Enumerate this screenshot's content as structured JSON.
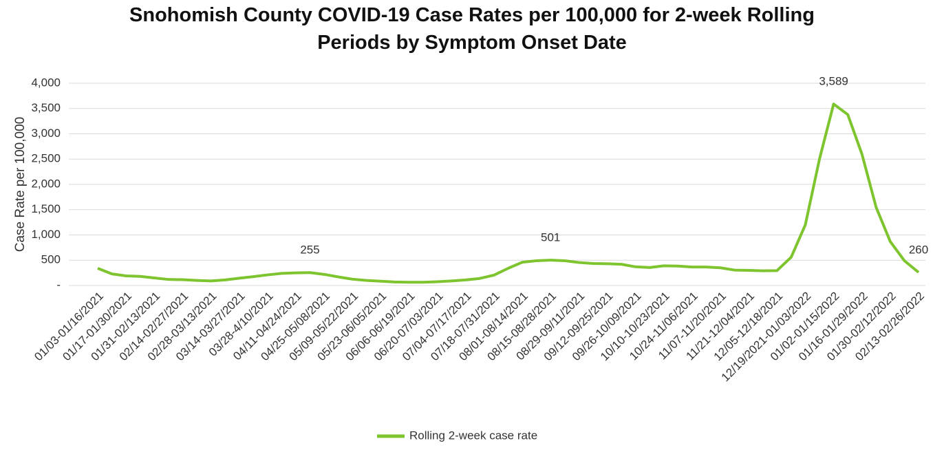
{
  "chart_data": {
    "type": "line",
    "title": "Snohomish County COVID-19 Case Rates per 100,000 for 2-week Rolling Periods by Symptom Onset Date",
    "y_label": "Case Rate per 100,000",
    "categories": [
      "01/03-01/16/2021",
      null,
      "01/17-01/30/2021",
      null,
      "01/31-02/13/2021",
      null,
      "02/14-02/27/2021",
      null,
      "02/28-03/13/2021",
      null,
      "03/14-03/27/2021",
      null,
      "03/28-4/10/2021",
      null,
      "04/11-04/24/2021",
      null,
      "04/25-05/08/2021",
      null,
      "05/09-05/22/2021",
      null,
      "05/23-06/05/2021",
      null,
      "06/06-06/19/2021",
      null,
      "06/20-07/03/2021",
      null,
      "07/04-07/17/2021",
      null,
      "07/18-07/31/2021",
      null,
      "08/01-08/14/2021",
      null,
      "08/15-08/28/2021",
      null,
      "08/29-09/11/2021",
      null,
      "09/12-09/25/2021",
      null,
      "09/26-10/09/2021",
      null,
      "10/10-10/23/2021",
      null,
      "10/24-11/06/2021",
      null,
      "11/07-11/20/2021",
      null,
      "11/21-12/04/2021",
      null,
      "12/05-12/18/2021",
      null,
      "12/19/2021-01/03/2022",
      null,
      "01/02-01/15/2022",
      null,
      "01/16-01/29/2022",
      null,
      "01/30-02/12/2022",
      null,
      "02/13-02/26/2022"
    ],
    "series": [
      {
        "name": "Rolling 2-week case rate",
        "color": "#7dc42f",
        "values": [
          340,
          230,
          190,
          180,
          150,
          120,
          115,
          100,
          90,
          110,
          145,
          175,
          210,
          240,
          250,
          255,
          220,
          170,
          125,
          100,
          85,
          70,
          65,
          65,
          75,
          90,
          110,
          140,
          205,
          340,
          460,
          490,
          501,
          490,
          455,
          435,
          430,
          420,
          370,
          355,
          390,
          385,
          365,
          365,
          350,
          305,
          300,
          290,
          295,
          560,
          1200,
          2500,
          3589,
          3380,
          2600,
          1550,
          870,
          490,
          260
        ],
        "value_labels": [
          null,
          null,
          null,
          null,
          null,
          null,
          null,
          null,
          null,
          null,
          null,
          null,
          null,
          null,
          null,
          "255",
          null,
          null,
          null,
          null,
          null,
          null,
          null,
          null,
          null,
          null,
          null,
          null,
          null,
          null,
          null,
          null,
          "501",
          null,
          null,
          null,
          null,
          null,
          null,
          null,
          null,
          null,
          null,
          null,
          null,
          null,
          null,
          null,
          null,
          null,
          null,
          null,
          "3,589",
          null,
          null,
          null,
          null,
          null,
          "260"
        ]
      }
    ],
    "ylim": [
      0,
      4000
    ],
    "yticks": [
      {
        "value": 0,
        "label": "-"
      },
      500,
      {
        "value": 1000,
        "label": "1,000"
      },
      {
        "value": 1500,
        "label": "1,500"
      },
      {
        "value": 2000,
        "label": "2,000"
      },
      {
        "value": 2500,
        "label": "2,500"
      },
      {
        "value": 3000,
        "label": "3,000"
      },
      {
        "value": 3500,
        "label": "3,500"
      },
      {
        "value": 4000,
        "label": "4,000"
      }
    ],
    "grid": true,
    "legend": "bottom"
  }
}
